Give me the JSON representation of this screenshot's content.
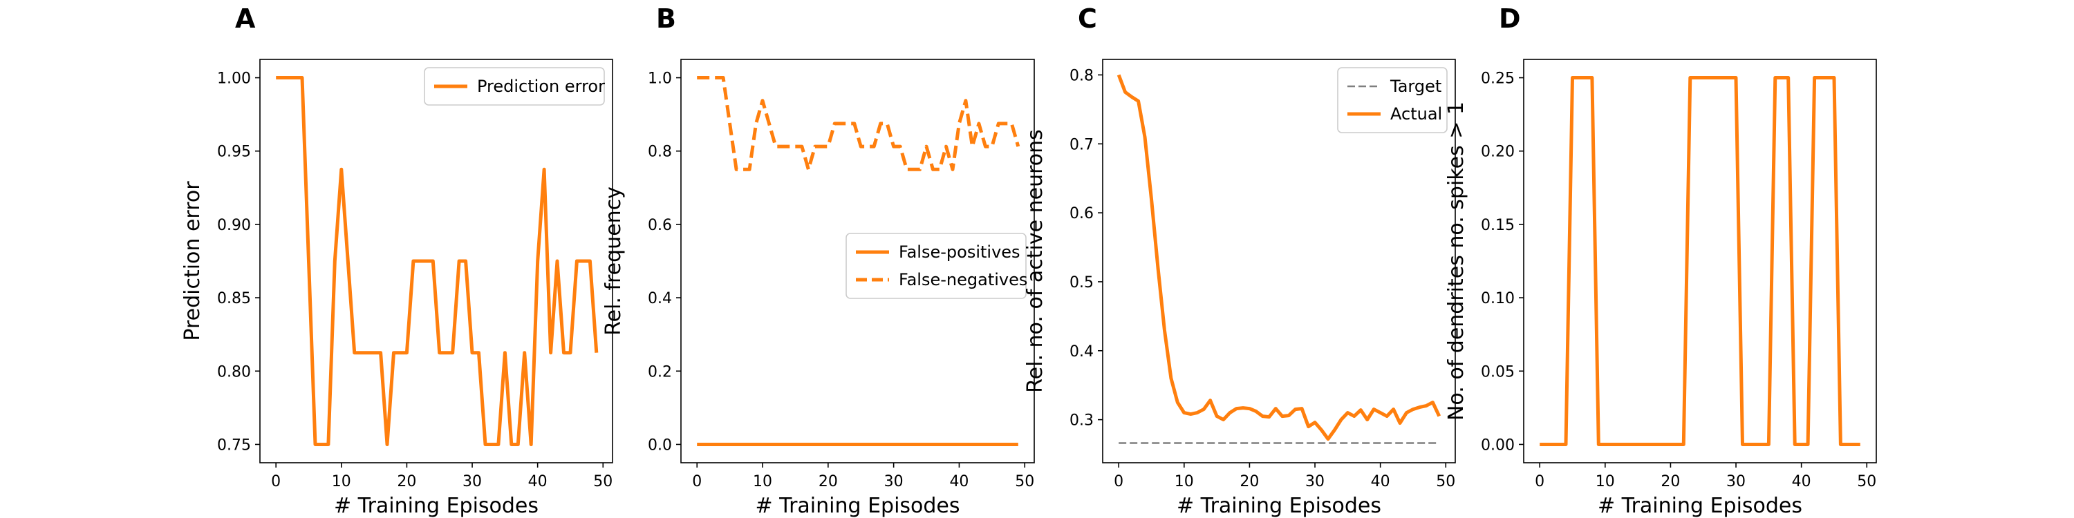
{
  "colors": {
    "series": "#ff7f0e",
    "target": "#7f7f7f",
    "frame": "#000000"
  },
  "chart_data": [
    {
      "panel": "A",
      "type": "line",
      "xlabel": "# Training Episodes",
      "ylabel": "Prediction error",
      "xlim": [
        -2.45,
        51.45
      ],
      "ylim": [
        0.7375,
        1.0125
      ],
      "xticks": [
        0,
        10,
        20,
        30,
        40,
        50
      ],
      "yticks": [
        0.75,
        0.8,
        0.85,
        0.9,
        0.95,
        1.0
      ],
      "ytick_labels": [
        "0.75",
        "0.80",
        "0.85",
        "0.90",
        "0.95",
        "1.00"
      ],
      "legend": {
        "position": "top-right",
        "entries": [
          {
            "label": "Prediction error",
            "style": "solid"
          }
        ]
      },
      "series": [
        {
          "name": "Prediction error",
          "style": "solid",
          "x": [
            0,
            1,
            2,
            3,
            4,
            5,
            6,
            7,
            8,
            9,
            10,
            11,
            12,
            13,
            14,
            15,
            16,
            17,
            18,
            19,
            20,
            21,
            22,
            23,
            24,
            25,
            26,
            27,
            28,
            29,
            30,
            31,
            32,
            33,
            34,
            35,
            36,
            37,
            38,
            39,
            40,
            41,
            42,
            43,
            44,
            45,
            46,
            47,
            48,
            49
          ],
          "values": [
            1.0,
            1.0,
            1.0,
            1.0,
            1.0,
            0.875,
            0.75,
            0.75,
            0.75,
            0.875,
            0.9375,
            0.875,
            0.8125,
            0.8125,
            0.8125,
            0.8125,
            0.8125,
            0.75,
            0.8125,
            0.8125,
            0.8125,
            0.875,
            0.875,
            0.875,
            0.875,
            0.8125,
            0.8125,
            0.8125,
            0.875,
            0.875,
            0.8125,
            0.8125,
            0.75,
            0.75,
            0.75,
            0.8125,
            0.75,
            0.75,
            0.8125,
            0.75,
            0.875,
            0.9375,
            0.8125,
            0.875,
            0.8125,
            0.8125,
            0.875,
            0.875,
            0.875,
            0.8125
          ]
        }
      ]
    },
    {
      "panel": "B",
      "type": "line",
      "xlabel": "# Training Episodes",
      "ylabel": "Rel. frequency",
      "xlim": [
        -2.45,
        51.45
      ],
      "ylim": [
        -0.05,
        1.05
      ],
      "xticks": [
        0,
        10,
        20,
        30,
        40,
        50
      ],
      "yticks": [
        0.0,
        0.2,
        0.4,
        0.6,
        0.8,
        1.0
      ],
      "ytick_labels": [
        "0.0",
        "0.2",
        "0.4",
        "0.6",
        "0.8",
        "1.0"
      ],
      "legend": {
        "position": "center-right",
        "entries": [
          {
            "label": "False-positives",
            "style": "solid"
          },
          {
            "label": "False-negatives",
            "style": "dashed"
          }
        ]
      },
      "series": [
        {
          "name": "False-positives",
          "style": "solid",
          "x": [
            0,
            49
          ],
          "values": [
            0.0,
            0.0
          ]
        },
        {
          "name": "False-negatives",
          "style": "dashed",
          "x": [
            0,
            1,
            2,
            3,
            4,
            5,
            6,
            7,
            8,
            9,
            10,
            11,
            12,
            13,
            14,
            15,
            16,
            17,
            18,
            19,
            20,
            21,
            22,
            23,
            24,
            25,
            26,
            27,
            28,
            29,
            30,
            31,
            32,
            33,
            34,
            35,
            36,
            37,
            38,
            39,
            40,
            41,
            42,
            43,
            44,
            45,
            46,
            47,
            48,
            49
          ],
          "values": [
            1.0,
            1.0,
            1.0,
            1.0,
            1.0,
            0.875,
            0.75,
            0.75,
            0.75,
            0.875,
            0.9375,
            0.875,
            0.8125,
            0.8125,
            0.8125,
            0.8125,
            0.8125,
            0.75,
            0.8125,
            0.8125,
            0.8125,
            0.875,
            0.875,
            0.875,
            0.875,
            0.8125,
            0.8125,
            0.8125,
            0.875,
            0.875,
            0.8125,
            0.8125,
            0.75,
            0.75,
            0.75,
            0.8125,
            0.75,
            0.75,
            0.8125,
            0.75,
            0.875,
            0.9375,
            0.8125,
            0.875,
            0.8125,
            0.8125,
            0.875,
            0.875,
            0.875,
            0.8125
          ]
        }
      ]
    },
    {
      "panel": "C",
      "type": "line",
      "xlabel": "# Training Episodes",
      "ylabel": "Rel. no. of active neurons",
      "xlim": [
        -2.45,
        51.45
      ],
      "ylim": [
        0.2375,
        0.8225
      ],
      "xticks": [
        0,
        10,
        20,
        30,
        40,
        50
      ],
      "yticks": [
        0.3,
        0.4,
        0.5,
        0.6,
        0.7,
        0.8
      ],
      "ytick_labels": [
        "0.3",
        "0.4",
        "0.5",
        "0.6",
        "0.7",
        "0.8"
      ],
      "legend": {
        "position": "top-right",
        "entries": [
          {
            "label": "Target",
            "style": "dashed-gray"
          },
          {
            "label": "Actual",
            "style": "solid"
          }
        ]
      },
      "series": [
        {
          "name": "Target",
          "style": "dashed-gray",
          "x": [
            0,
            49
          ],
          "values": [
            0.266,
            0.266
          ]
        },
        {
          "name": "Actual",
          "style": "solid",
          "x": [
            0,
            1,
            2,
            3,
            4,
            5,
            6,
            7,
            8,
            9,
            10,
            11,
            12,
            13,
            14,
            15,
            16,
            17,
            18,
            19,
            20,
            21,
            22,
            23,
            24,
            25,
            26,
            27,
            28,
            29,
            30,
            31,
            32,
            33,
            34,
            35,
            36,
            37,
            38,
            39,
            40,
            41,
            42,
            43,
            44,
            45,
            46,
            47,
            48,
            49
          ],
          "values": [
            0.8,
            0.775,
            0.768,
            0.762,
            0.71,
            0.62,
            0.52,
            0.43,
            0.36,
            0.325,
            0.31,
            0.308,
            0.31,
            0.315,
            0.328,
            0.305,
            0.3,
            0.31,
            0.316,
            0.317,
            0.316,
            0.312,
            0.305,
            0.304,
            0.316,
            0.305,
            0.306,
            0.315,
            0.316,
            0.29,
            0.296,
            0.285,
            0.272,
            0.285,
            0.3,
            0.31,
            0.305,
            0.314,
            0.3,
            0.315,
            0.31,
            0.305,
            0.315,
            0.295,
            0.31,
            0.315,
            0.318,
            0.32,
            0.325,
            0.305
          ]
        }
      ]
    },
    {
      "panel": "D",
      "type": "line",
      "xlabel": "# Training Episodes",
      "ylabel": "No. of dendrites no. spikes > 1",
      "xlim": [
        -2.45,
        51.45
      ],
      "ylim": [
        -0.0125,
        0.2625
      ],
      "xticks": [
        0,
        10,
        20,
        30,
        40,
        50
      ],
      "yticks": [
        0.0,
        0.05,
        0.1,
        0.15,
        0.2,
        0.25
      ],
      "ytick_labels": [
        "0.00",
        "0.05",
        "0.10",
        "0.15",
        "0.20",
        "0.25"
      ],
      "series": [
        {
          "name": "",
          "style": "solid",
          "x": [
            0,
            1,
            2,
            3,
            4,
            5,
            6,
            7,
            8,
            9,
            10,
            11,
            12,
            13,
            14,
            15,
            16,
            17,
            18,
            19,
            20,
            21,
            22,
            23,
            24,
            25,
            26,
            27,
            28,
            29,
            30,
            31,
            32,
            33,
            34,
            35,
            36,
            37,
            38,
            39,
            40,
            41,
            42,
            43,
            44,
            45,
            46,
            47,
            48,
            49
          ],
          "values": [
            0,
            0,
            0,
            0,
            0,
            0.25,
            0.25,
            0.25,
            0.25,
            0,
            0,
            0,
            0,
            0,
            0,
            0,
            0,
            0,
            0,
            0,
            0,
            0,
            0,
            0.25,
            0.25,
            0.25,
            0.25,
            0.25,
            0.25,
            0.25,
            0.25,
            0,
            0,
            0,
            0,
            0,
            0.25,
            0.25,
            0.25,
            0,
            0,
            0,
            0.25,
            0.25,
            0.25,
            0.25,
            0,
            0,
            0,
            0
          ]
        }
      ]
    }
  ]
}
